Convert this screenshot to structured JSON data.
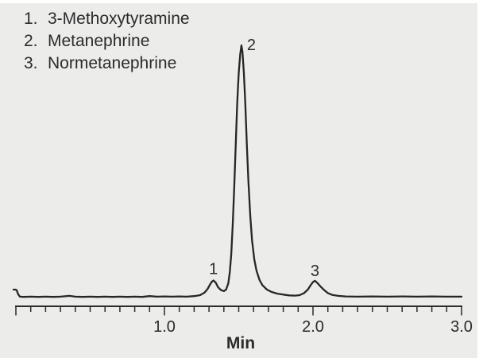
{
  "colors": {
    "page_bg": "#ffffff",
    "panel_bg": "#ECECEB",
    "trace": "#262626",
    "axis": "#2B2B2B",
    "text": "#2B2B2B"
  },
  "chart_data": {
    "type": "line",
    "xlabel": "Min",
    "xlim": [
      0,
      3.0
    ],
    "major_tick_interval": 1.0,
    "minor_tick_interval": 0.1,
    "x_ticks": [
      1.0,
      2.0,
      3.0
    ],
    "x_tick_labels": [
      "1.0",
      "2.0",
      "3.0"
    ],
    "grid": false,
    "legend_position": "top-left",
    "legend": [
      {
        "number": "1.",
        "label": "3-Methoxytyramine"
      },
      {
        "number": "2.",
        "label": "Metanephrine"
      },
      {
        "number": "3.",
        "label": "Normetanephrine"
      }
    ],
    "peaks": [
      {
        "label": "1",
        "compound": "3-Methoxytyramine",
        "retention_time_min": 1.33,
        "relative_height": 0.066
      },
      {
        "label": "2",
        "compound": "Metanephrine",
        "retention_time_min": 1.518,
        "relative_height": 1.0
      },
      {
        "label": "3",
        "compound": "Normetanephrine",
        "retention_time_min": 2.013,
        "relative_height": 0.065
      }
    ],
    "trace_points": [
      [
        -0.016,
        0.03
      ],
      [
        -0.005,
        0.03
      ],
      [
        0.005,
        0.028
      ],
      [
        0.015,
        0.012
      ],
      [
        0.027,
        0.002
      ],
      [
        0.05,
        0.001
      ],
      [
        0.1,
        0.002
      ],
      [
        0.15,
        0.001
      ],
      [
        0.2,
        0.002
      ],
      [
        0.25,
        0.001
      ],
      [
        0.3,
        0.002
      ],
      [
        0.36,
        0.005
      ],
      [
        0.4,
        0.002
      ],
      [
        0.45,
        0.001
      ],
      [
        0.5,
        0.002
      ],
      [
        0.55,
        0.001
      ],
      [
        0.6,
        0.002
      ],
      [
        0.65,
        0.001
      ],
      [
        0.7,
        0.002
      ],
      [
        0.75,
        0.001
      ],
      [
        0.8,
        0.002
      ],
      [
        0.85,
        0.001
      ],
      [
        0.9,
        0.004
      ],
      [
        0.95,
        0.002
      ],
      [
        1.0,
        0.003
      ],
      [
        1.05,
        0.002
      ],
      [
        1.1,
        0.003
      ],
      [
        1.15,
        0.002
      ],
      [
        1.2,
        0.004
      ],
      [
        1.24,
        0.008
      ],
      [
        1.27,
        0.018
      ],
      [
        1.29,
        0.032
      ],
      [
        1.305,
        0.048
      ],
      [
        1.32,
        0.062
      ],
      [
        1.33,
        0.066
      ],
      [
        1.345,
        0.058
      ],
      [
        1.36,
        0.04
      ],
      [
        1.38,
        0.028
      ],
      [
        1.4,
        0.024
      ],
      [
        1.415,
        0.03
      ],
      [
        1.43,
        0.055
      ],
      [
        1.44,
        0.1
      ],
      [
        1.45,
        0.17
      ],
      [
        1.46,
        0.29
      ],
      [
        1.47,
        0.44
      ],
      [
        1.48,
        0.61
      ],
      [
        1.49,
        0.77
      ],
      [
        1.5,
        0.89
      ],
      [
        1.51,
        0.965
      ],
      [
        1.518,
        1.0
      ],
      [
        1.525,
        0.975
      ],
      [
        1.535,
        0.89
      ],
      [
        1.545,
        0.76
      ],
      [
        1.555,
        0.6
      ],
      [
        1.565,
        0.46
      ],
      [
        1.578,
        0.32
      ],
      [
        1.59,
        0.225
      ],
      [
        1.605,
        0.15
      ],
      [
        1.62,
        0.105
      ],
      [
        1.64,
        0.068
      ],
      [
        1.66,
        0.047
      ],
      [
        1.69,
        0.03
      ],
      [
        1.72,
        0.021
      ],
      [
        1.76,
        0.014
      ],
      [
        1.8,
        0.01
      ],
      [
        1.84,
        0.007
      ],
      [
        1.88,
        0.006
      ],
      [
        1.91,
        0.008
      ],
      [
        1.94,
        0.016
      ],
      [
        1.965,
        0.03
      ],
      [
        1.985,
        0.048
      ],
      [
        2.0,
        0.06
      ],
      [
        2.013,
        0.065
      ],
      [
        2.03,
        0.056
      ],
      [
        2.05,
        0.043
      ],
      [
        2.075,
        0.028
      ],
      [
        2.1,
        0.016
      ],
      [
        2.13,
        0.009
      ],
      [
        2.17,
        0.005
      ],
      [
        2.22,
        0.003
      ],
      [
        2.3,
        0.002
      ],
      [
        2.4,
        0.003
      ],
      [
        2.5,
        0.002
      ],
      [
        2.6,
        0.003
      ],
      [
        2.7,
        0.002
      ],
      [
        2.8,
        0.003
      ],
      [
        2.9,
        0.002
      ],
      [
        3.0,
        0.002
      ]
    ]
  }
}
